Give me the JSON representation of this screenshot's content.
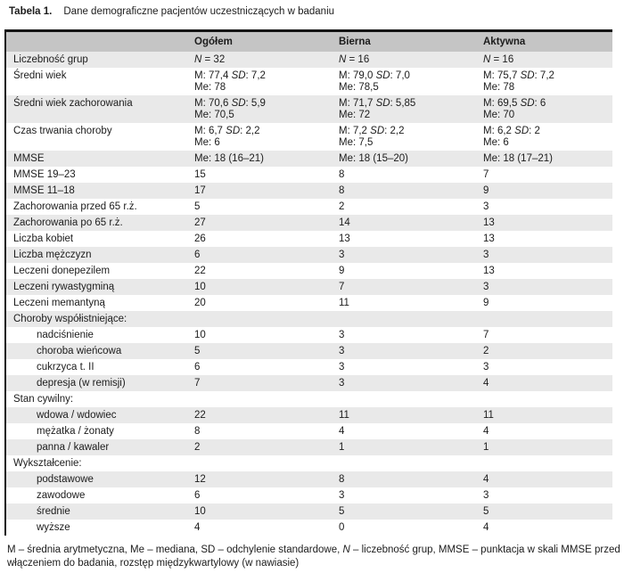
{
  "title": {
    "label": "Tabela 1.",
    "caption": "Dane demograficzne pacjentów uczestniczących w badaniu"
  },
  "table": {
    "columns": [
      "",
      "Ogółem",
      "Bierna",
      "Aktywna"
    ],
    "rows": [
      {
        "label": "Liczebność grup",
        "indent": false,
        "cells": [
          [
            "N = 32"
          ],
          [
            "N = 16"
          ],
          [
            "N = 16"
          ]
        ]
      },
      {
        "label": "Średni wiek",
        "indent": false,
        "cells": [
          [
            "M: 77,4  SD: 7,2",
            "Me: 78"
          ],
          [
            "M: 79,0  SD: 7,0",
            "Me: 78,5"
          ],
          [
            "M: 75,7  SD: 7,2",
            "Me: 78"
          ]
        ]
      },
      {
        "label": "Średni wiek zachorowania",
        "indent": false,
        "cells": [
          [
            "M: 70,6 SD: 5,9",
            "Me: 70,5"
          ],
          [
            "M: 71,7  SD: 5,85",
            "Me: 72"
          ],
          [
            "M: 69,5  SD: 6",
            "Me: 70"
          ]
        ]
      },
      {
        "label": "Czas trwania choroby",
        "indent": false,
        "cells": [
          [
            "M: 6,7  SD: 2,2",
            "Me: 6"
          ],
          [
            "M: 7,2  SD: 2,2",
            "Me: 7,5"
          ],
          [
            "M: 6,2  SD: 2",
            "Me: 6"
          ]
        ]
      },
      {
        "label": "MMSE",
        "indent": false,
        "cells": [
          [
            "Me: 18 (16–21)"
          ],
          [
            "Me: 18 (15–20)"
          ],
          [
            "Me: 18 (17–21)"
          ]
        ]
      },
      {
        "label": "MMSE 19–23",
        "indent": false,
        "cells": [
          [
            "15"
          ],
          [
            "8"
          ],
          [
            "7"
          ]
        ]
      },
      {
        "label": "MMSE 11–18",
        "indent": false,
        "cells": [
          [
            "17"
          ],
          [
            "8"
          ],
          [
            "9"
          ]
        ]
      },
      {
        "label": "Zachorowania przed 65 r.ż.",
        "indent": false,
        "cells": [
          [
            "5"
          ],
          [
            "2"
          ],
          [
            "3"
          ]
        ]
      },
      {
        "label": "Zachorowania po 65 r.ż.",
        "indent": false,
        "cells": [
          [
            "27"
          ],
          [
            "14"
          ],
          [
            "13"
          ]
        ]
      },
      {
        "label": "Liczba kobiet",
        "indent": false,
        "cells": [
          [
            "26"
          ],
          [
            "13"
          ],
          [
            "13"
          ]
        ]
      },
      {
        "label": "Liczba mężczyzn",
        "indent": false,
        "cells": [
          [
            "6"
          ],
          [
            "3"
          ],
          [
            "3"
          ]
        ]
      },
      {
        "label": "Leczeni donepezilem",
        "indent": false,
        "cells": [
          [
            "22"
          ],
          [
            "9"
          ],
          [
            "13"
          ]
        ]
      },
      {
        "label": "Leczeni rywastygminą",
        "indent": false,
        "cells": [
          [
            "10"
          ],
          [
            "7"
          ],
          [
            "3"
          ]
        ]
      },
      {
        "label": "Leczeni memantyną",
        "indent": false,
        "cells": [
          [
            "20"
          ],
          [
            "11"
          ],
          [
            "9"
          ]
        ]
      },
      {
        "label": "Choroby współistniejące:",
        "indent": false,
        "section": true,
        "cells": [
          [],
          [],
          []
        ]
      },
      {
        "label": "nadciśnienie",
        "indent": true,
        "cells": [
          [
            "10"
          ],
          [
            "3"
          ],
          [
            "7"
          ]
        ]
      },
      {
        "label": "choroba wieńcowa",
        "indent": true,
        "cells": [
          [
            "5"
          ],
          [
            "3"
          ],
          [
            "2"
          ]
        ]
      },
      {
        "label": "cukrzyca t. II",
        "indent": true,
        "cells": [
          [
            "6"
          ],
          [
            "3"
          ],
          [
            "3"
          ]
        ]
      },
      {
        "label": "depresja (w remisji)",
        "indent": true,
        "cells": [
          [
            "7"
          ],
          [
            "3"
          ],
          [
            "4"
          ]
        ]
      },
      {
        "label": "Stan cywilny:",
        "indent": false,
        "section": true,
        "cells": [
          [],
          [],
          []
        ]
      },
      {
        "label": "wdowa / wdowiec",
        "indent": true,
        "cells": [
          [
            "22"
          ],
          [
            "11"
          ],
          [
            "11"
          ]
        ]
      },
      {
        "label": "mężatka / żonaty",
        "indent": true,
        "cells": [
          [
            "8"
          ],
          [
            "4"
          ],
          [
            "4"
          ]
        ]
      },
      {
        "label": "panna / kawaler",
        "indent": true,
        "cells": [
          [
            "2"
          ],
          [
            "1"
          ],
          [
            "1"
          ]
        ]
      },
      {
        "label": "Wykształcenie:",
        "indent": false,
        "section": true,
        "cells": [
          [],
          [],
          []
        ]
      },
      {
        "label": "podstawowe",
        "indent": true,
        "cells": [
          [
            "12"
          ],
          [
            "8"
          ],
          [
            "4"
          ]
        ]
      },
      {
        "label": "zawodowe",
        "indent": true,
        "cells": [
          [
            "6"
          ],
          [
            "3"
          ],
          [
            "3"
          ]
        ]
      },
      {
        "label": "średnie",
        "indent": true,
        "cells": [
          [
            "10"
          ],
          [
            "5"
          ],
          [
            "5"
          ]
        ]
      },
      {
        "label": "wyższe",
        "indent": true,
        "cells": [
          [
            "4"
          ],
          [
            "0"
          ],
          [
            "4"
          ]
        ]
      }
    ]
  },
  "footnote": "M – średnia arytmetyczna, Me – mediana, SD – odchylenie standardowe, N – liczebność grup, MMSE – punktacja w skali MMSE przed włączeniem do badania, rozstęp międzykwartylowy (w nawiasie)",
  "colors": {
    "header_bg": "#c5c5c5",
    "row_alt_bg": "#e9e9e9",
    "border": "#151515",
    "text": "#1c1c1c"
  }
}
